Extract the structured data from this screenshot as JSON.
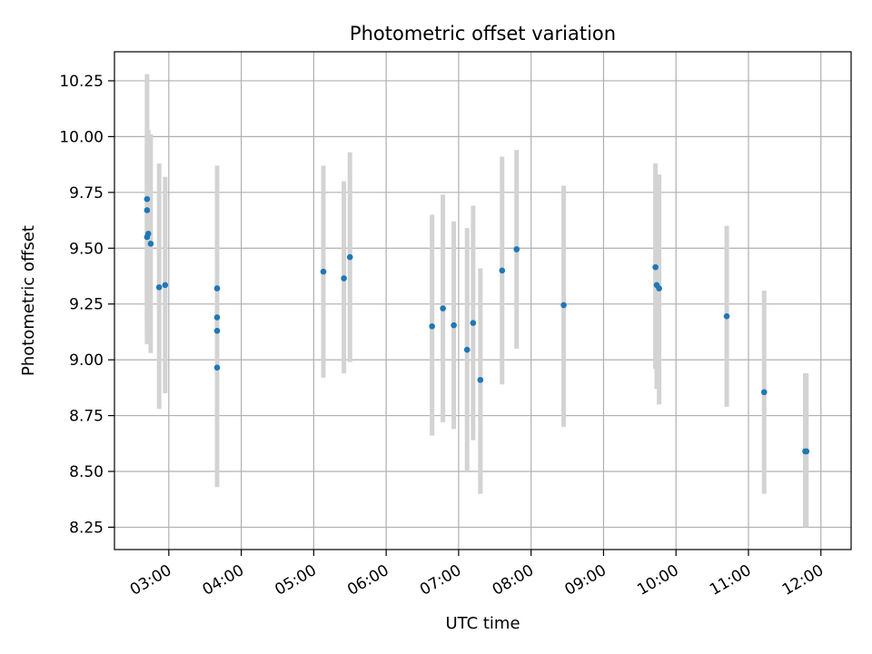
{
  "chart_data": {
    "type": "scatter",
    "title": "Photometric offset variation",
    "xlabel": "UTC time",
    "ylabel": "Photometric offset",
    "xlim": [
      "02:15",
      "12:25"
    ],
    "ylim": [
      8.15,
      10.38
    ],
    "x_ticks": [
      "03:00",
      "04:00",
      "05:00",
      "06:00",
      "07:00",
      "08:00",
      "09:00",
      "10:00",
      "11:00",
      "12:00"
    ],
    "y_ticks": [
      "8.25",
      "8.50",
      "8.75",
      "9.00",
      "9.25",
      "9.50",
      "9.75",
      "10.00",
      "10.25"
    ],
    "grid": true,
    "colors": {
      "points": "#1f77b4",
      "errorbars": "#d3d3d3",
      "grid": "#b0b0b0"
    },
    "points": [
      {
        "x": "02:42",
        "y": 9.67,
        "err_low": 9.07,
        "err_high": 10.28
      },
      {
        "x": "02:42",
        "y": 9.72,
        "err_low": 9.15,
        "err_high": 10.0
      },
      {
        "x": "02:42",
        "y": 9.55,
        "err_low": 9.1,
        "err_high": 10.05
      },
      {
        "x": "02:43",
        "y": 9.565,
        "err_low": 9.07,
        "err_high": 10.03
      },
      {
        "x": "02:45",
        "y": 9.52,
        "err_low": 9.03,
        "err_high": 10.01
      },
      {
        "x": "02:52",
        "y": 9.325,
        "err_low": 8.78,
        "err_high": 9.88
      },
      {
        "x": "02:57",
        "y": 9.335,
        "err_low": 8.85,
        "err_high": 9.82
      },
      {
        "x": "03:40",
        "y": 9.32,
        "err_low": 8.75,
        "err_high": 9.87
      },
      {
        "x": "03:40",
        "y": 9.19,
        "err_low": 8.65,
        "err_high": 9.72
      },
      {
        "x": "03:40",
        "y": 9.13,
        "err_low": 8.6,
        "err_high": 9.66
      },
      {
        "x": "03:40",
        "y": 8.965,
        "err_low": 8.43,
        "err_high": 9.5
      },
      {
        "x": "05:08",
        "y": 9.395,
        "err_low": 8.92,
        "err_high": 9.87
      },
      {
        "x": "05:25",
        "y": 9.365,
        "err_low": 8.94,
        "err_high": 9.8
      },
      {
        "x": "05:30",
        "y": 9.46,
        "err_low": 8.99,
        "err_high": 9.93
      },
      {
        "x": "06:38",
        "y": 9.15,
        "err_low": 8.66,
        "err_high": 9.65
      },
      {
        "x": "06:47",
        "y": 9.23,
        "err_low": 8.72,
        "err_high": 9.74
      },
      {
        "x": "06:56",
        "y": 9.155,
        "err_low": 8.69,
        "err_high": 9.62
      },
      {
        "x": "07:07",
        "y": 9.045,
        "err_low": 8.5,
        "err_high": 9.59
      },
      {
        "x": "07:12",
        "y": 9.165,
        "err_low": 8.64,
        "err_high": 9.69
      },
      {
        "x": "07:18",
        "y": 8.91,
        "err_low": 8.4,
        "err_high": 9.41
      },
      {
        "x": "07:36",
        "y": 9.4,
        "err_low": 8.89,
        "err_high": 9.91
      },
      {
        "x": "07:48",
        "y": 9.495,
        "err_low": 9.05,
        "err_high": 9.94
      },
      {
        "x": "08:27",
        "y": 9.245,
        "err_low": 8.7,
        "err_high": 9.78
      },
      {
        "x": "09:43",
        "y": 9.415,
        "err_low": 8.96,
        "err_high": 9.88
      },
      {
        "x": "09:44",
        "y": 9.335,
        "err_low": 8.87,
        "err_high": 9.8
      },
      {
        "x": "09:46",
        "y": 9.32,
        "err_low": 8.8,
        "err_high": 9.83
      },
      {
        "x": "10:42",
        "y": 9.195,
        "err_low": 8.79,
        "err_high": 9.6
      },
      {
        "x": "11:13",
        "y": 8.855,
        "err_low": 8.4,
        "err_high": 9.31
      },
      {
        "x": "11:47",
        "y": 8.59,
        "err_low": 8.25,
        "err_high": 8.94
      },
      {
        "x": "11:48",
        "y": 8.59,
        "err_low": 8.25,
        "err_high": 8.94
      }
    ]
  }
}
